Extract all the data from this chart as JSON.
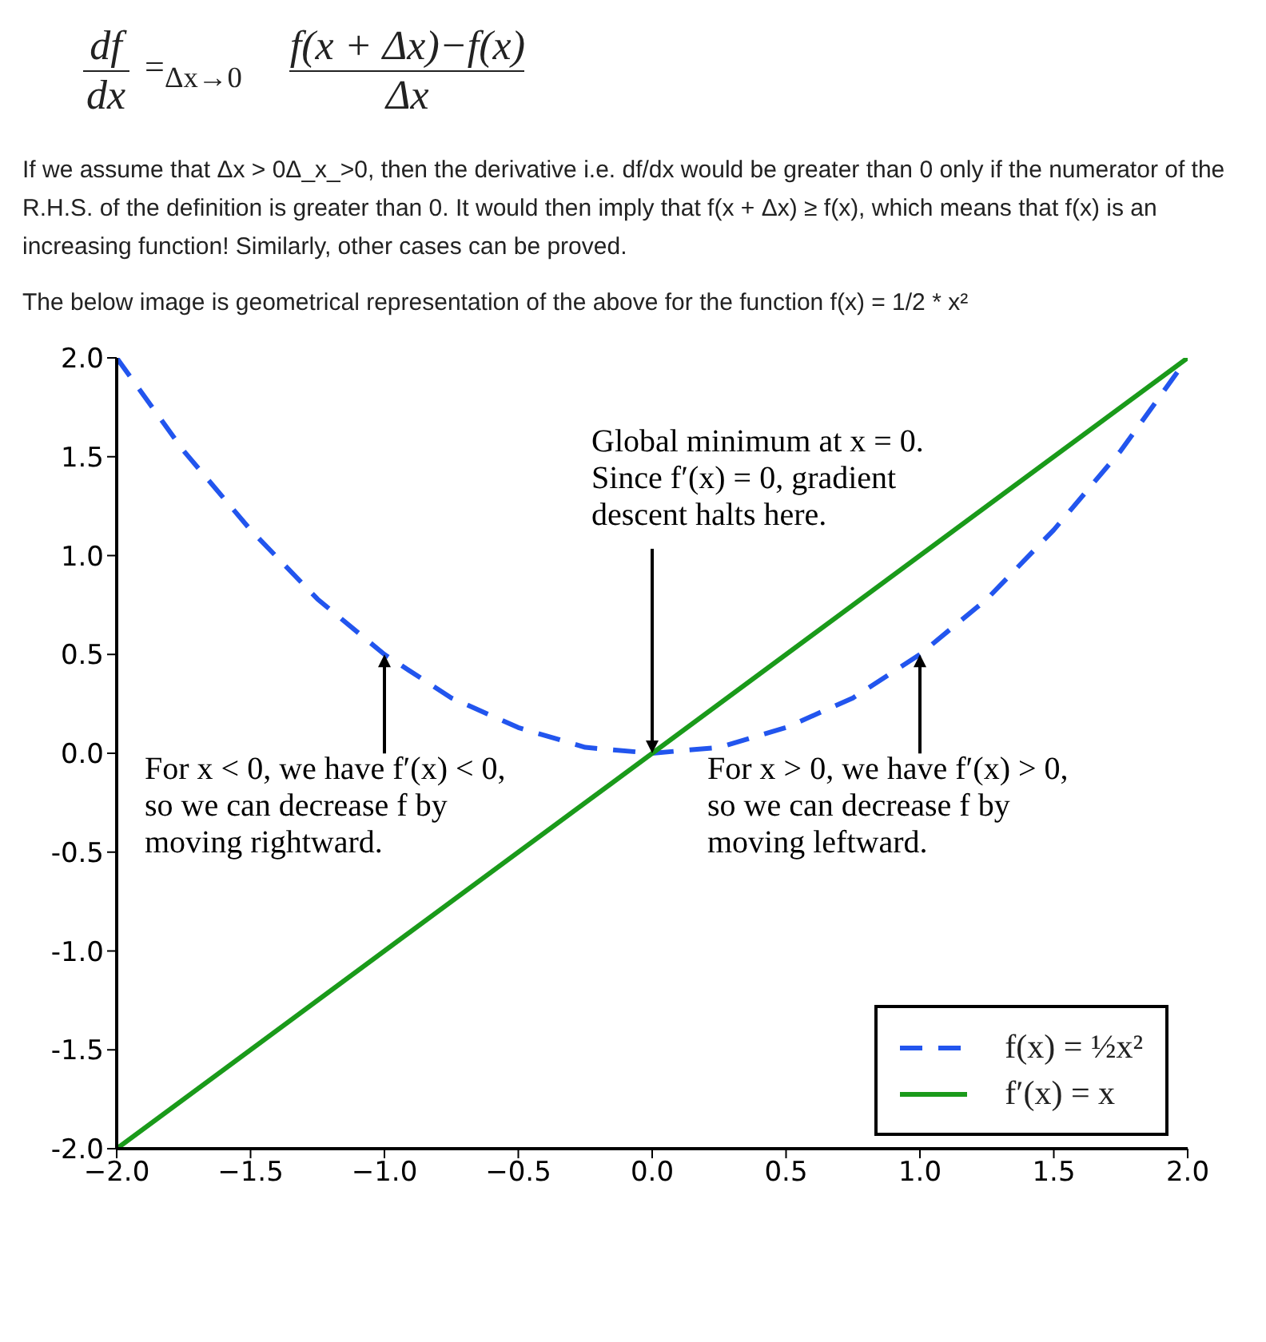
{
  "chart_data": {
    "type": "line",
    "annotations": [
      "df",
      "dx",
      "=$_{Δx→0}$",
      "f(x + Δx)−f(x)",
      "Δx",
      "If we assume that Δx > 0Δ_x_>0, then the derivative i.e. df/dx would be greater than 0 only if the numerator of the R.H.S. of the definition is greater than 0. It would then imply that f(x + Δx) ≥ f(x), which means that f(x) is an increasing function! Similarly, other cases can be proved.",
      "The below image is geometrical representation of the above for the function f(x) = 1/2 * x²",
      {
        "text": "Global minimum at x = 0.\nSince f′(x) = 0, gradient\ndescent halts here.",
        "x": 0,
        "y": 0
      },
      {
        "text": "For x < 0, we have f′(x) < 0,\nso we can decrease f by\nmoving rightward.",
        "x": -1,
        "y": 0.5
      },
      {
        "text": "For x > 0, we have f′(x) > 0,\nso we can decrease f by\nmoving leftward.",
        "x": 1,
        "y": 0.5
      }
    ],
    "series": [
      {
        "name": "f(x) = ½x²",
        "color": "#2255ee",
        "line_style": "dashed",
        "x": [
          -2,
          -1.75,
          -1.5,
          -1.25,
          -1,
          -0.75,
          -0.5,
          -0.25,
          0,
          0.25,
          0.5,
          0.75,
          1,
          1.25,
          1.5,
          1.75,
          2
        ],
        "values": [
          2,
          1.53,
          1.13,
          0.78,
          0.5,
          0.28,
          0.13,
          0.03,
          0,
          0.03,
          0.13,
          0.28,
          0.5,
          0.78,
          1.13,
          1.53,
          2
        ]
      },
      {
        "name": "f′(x) = x",
        "color": "#1a9a1a",
        "line_style": "solid",
        "x": [
          -2,
          2
        ],
        "values": [
          -2,
          2
        ]
      }
    ],
    "xlim": [
      -2,
      2
    ],
    "xticks": [
      {
        "value": -2,
        "label": "−2.0"
      },
      {
        "value": -1.5,
        "label": "−1.5"
      },
      {
        "value": -1,
        "label": "−1.0"
      },
      {
        "value": -0.5,
        "label": "−0.5"
      },
      {
        "value": 0,
        "label": "0.0"
      },
      {
        "value": 0.5,
        "label": "0.5"
      },
      {
        "value": 1,
        "label": "1.0"
      },
      {
        "value": 1.5,
        "label": "1.5"
      },
      {
        "value": 2,
        "label": "2.0"
      }
    ],
    "ylim": [
      -2,
      2
    ],
    "yticks": [
      {
        "value": -2,
        "label": "-2.0"
      },
      {
        "value": -1.5,
        "label": "-1.5"
      },
      {
        "value": -1,
        "label": "-1.0"
      },
      {
        "value": -0.5,
        "label": "-0.5"
      },
      {
        "value": 0,
        "label": "0.0"
      },
      {
        "value": 0.5,
        "label": "0.5"
      },
      {
        "value": 1,
        "label": "1.0"
      },
      {
        "value": 1.5,
        "label": "1.5"
      },
      {
        "value": 2,
        "label": "2.0"
      }
    ],
    "legend": "bottom right",
    "marker": "none"
  }
}
